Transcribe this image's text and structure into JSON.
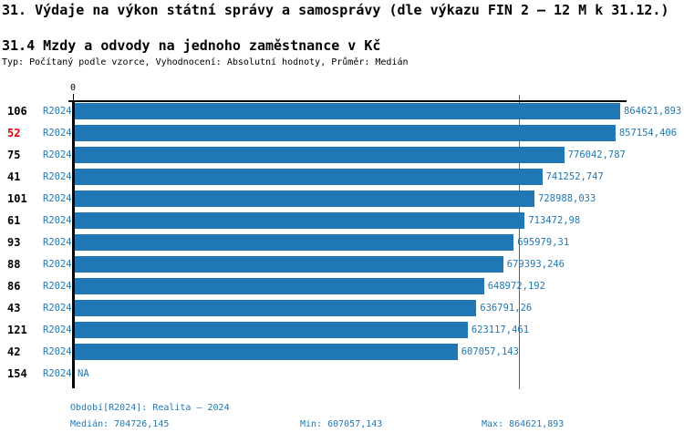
{
  "title": "31. Výdaje na výkon státní správy a samosprávy (dle výkazu FIN 2 – 12 M k 31.12.)",
  "subtitle": "31.4 Mzdy a odvody na jednoho zaměstnance v Kč",
  "meta_line": "Typ: Počítaný podle vzorce, Vyhodnocení: Absolutní hodnoty, Průměr: Medián",
  "colors": {
    "bar_blue": "#1f77b4",
    "text_blue": "#1f77b4",
    "highlight_red": "#e60000",
    "axis_black": "#000000"
  },
  "chart_data": {
    "type": "bar",
    "orientation": "horizontal",
    "x_axis": {
      "zero_label": "0",
      "xlim_min": 0,
      "xlim_max": 870000
    },
    "series_label": "R2024",
    "categories": [
      "106",
      "52",
      "75",
      "41",
      "101",
      "61",
      "93",
      "88",
      "86",
      "43",
      "121",
      "42",
      "154"
    ],
    "rows": [
      {
        "id": "106",
        "period": "R2024",
        "value": 864621.893,
        "value_label": "864621,893",
        "highlight": false
      },
      {
        "id": "52",
        "period": "R2024",
        "value": 857154.406,
        "value_label": "857154,406",
        "highlight": true
      },
      {
        "id": "75",
        "period": "R2024",
        "value": 776042.787,
        "value_label": "776042,787",
        "highlight": false
      },
      {
        "id": "41",
        "period": "R2024",
        "value": 741252.747,
        "value_label": "741252,747",
        "highlight": false
      },
      {
        "id": "101",
        "period": "R2024",
        "value": 728988.033,
        "value_label": "728988,033",
        "highlight": false
      },
      {
        "id": "61",
        "period": "R2024",
        "value": 713472.98,
        "value_label": "713472,98",
        "highlight": false
      },
      {
        "id": "93",
        "period": "R2024",
        "value": 695979.31,
        "value_label": "695979,31",
        "highlight": false
      },
      {
        "id": "88",
        "period": "R2024",
        "value": 679393.246,
        "value_label": "679393,246",
        "highlight": false
      },
      {
        "id": "86",
        "period": "R2024",
        "value": 648972.192,
        "value_label": "648972,192",
        "highlight": false
      },
      {
        "id": "43",
        "period": "R2024",
        "value": 636791.26,
        "value_label": "636791,26",
        "highlight": false
      },
      {
        "id": "121",
        "period": "R2024",
        "value": 623117.461,
        "value_label": "623117,461",
        "highlight": false
      },
      {
        "id": "42",
        "period": "R2024",
        "value": 607057.143,
        "value_label": "607057,143",
        "highlight": false
      },
      {
        "id": "154",
        "period": "R2024",
        "value": null,
        "value_label": "NA",
        "highlight": false
      }
    ],
    "median_value": 704726.145,
    "min_value": 607057.143,
    "max_value": 864621.893,
    "grid": false,
    "legend": false
  },
  "footer": {
    "period_line": "Období[R2024]: Realita – 2024",
    "median_line": "Medián: 704726,145",
    "min_line": "Min: 607057,143",
    "max_line": "Max: 864621,893"
  }
}
